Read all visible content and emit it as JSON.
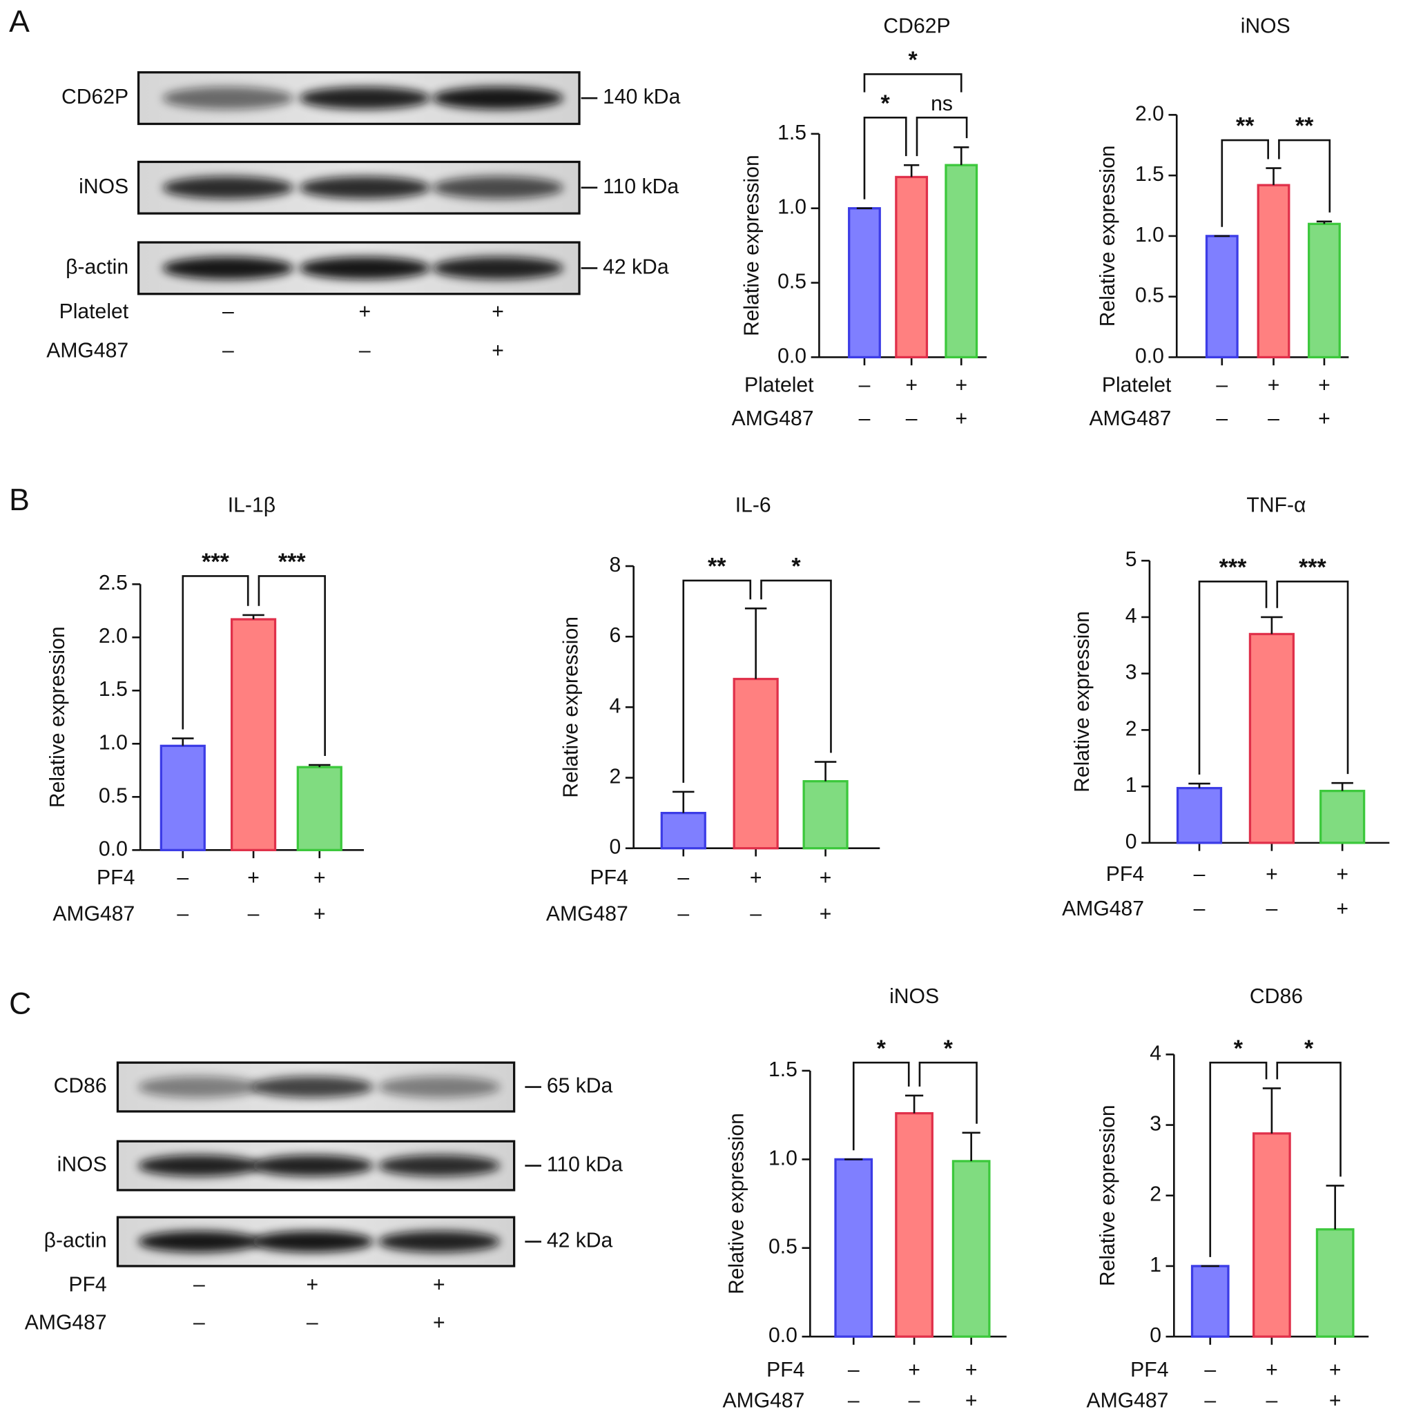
{
  "panels": [
    "A",
    "B",
    "C"
  ],
  "blots": [
    {
      "rows": [
        {
          "label": "CD62P",
          "marker": "140 kDa"
        },
        {
          "label": "iNOS",
          "marker": "110 kDa"
        },
        {
          "label": "β-actin",
          "marker": "42 kDa"
        }
      ],
      "conditions": [
        {
          "name": "Platelet",
          "signs": [
            "–",
            "+",
            "+"
          ]
        },
        {
          "name": "AMG487",
          "signs": [
            "–",
            "–",
            "+"
          ]
        }
      ]
    },
    {
      "rows": [
        {
          "label": "CD86",
          "marker": "65 kDa"
        },
        {
          "label": "iNOS",
          "marker": "110 kDa"
        },
        {
          "label": "β-actin",
          "marker": "42 kDa"
        }
      ],
      "conditions": [
        {
          "name": "PF4",
          "signs": [
            "–",
            "+",
            "+"
          ]
        },
        {
          "name": "AMG487",
          "signs": [
            "–",
            "–",
            "+"
          ]
        }
      ]
    }
  ],
  "chart_data": [
    {
      "type": "bar",
      "title": "CD62P",
      "ylabel": "Relative expression",
      "conditions": [
        {
          "name": "Platelet",
          "signs": [
            "–",
            "+",
            "+"
          ]
        },
        {
          "name": "AMG487",
          "signs": [
            "–",
            "–",
            "+"
          ]
        }
      ],
      "values": [
        1.0,
        1.21,
        1.29
      ],
      "errors": [
        0,
        0.08,
        0.12
      ],
      "colors": [
        "#7f7fff",
        "#ff8080",
        "#80dc80"
      ],
      "edge_colors": [
        "#3c3ce6",
        "#e0304a",
        "#3cc83c"
      ],
      "ylim": [
        0,
        1.5
      ],
      "yticks": [
        {
          "value": 0,
          "label": "0.0"
        },
        {
          "value": 0.5,
          "label": "0.5"
        },
        {
          "value": 1,
          "label": "1.0"
        },
        {
          "value": 1.5,
          "label": "1.5"
        }
      ],
      "significance": [
        "*",
        "ns",
        "*"
      ]
    },
    {
      "type": "bar",
      "title": "iNOS",
      "ylabel": "Relative expression",
      "conditions": [
        {
          "name": "Platelet",
          "signs": [
            "–",
            "+",
            "+"
          ]
        },
        {
          "name": "AMG487",
          "signs": [
            "–",
            "–",
            "+"
          ]
        }
      ],
      "values": [
        1.0,
        1.42,
        1.1
      ],
      "errors": [
        0,
        0.14,
        0.02
      ],
      "colors": [
        "#7f7fff",
        "#ff8080",
        "#80dc80"
      ],
      "edge_colors": [
        "#3c3ce6",
        "#e0304a",
        "#3cc83c"
      ],
      "ylim": [
        0,
        2
      ],
      "yticks": [
        {
          "value": 0,
          "label": "0.0"
        },
        {
          "value": 0.5,
          "label": "0.5"
        },
        {
          "value": 1,
          "label": "1.0"
        },
        {
          "value": 1.5,
          "label": "1.5"
        },
        {
          "value": 2,
          "label": "2.0"
        }
      ],
      "significance": [
        "**",
        "**"
      ]
    },
    {
      "type": "bar",
      "title": "IL-1β",
      "ylabel": "Relative expression",
      "conditions": [
        {
          "name": "PF4",
          "signs": [
            "–",
            "+",
            "+"
          ]
        },
        {
          "name": "AMG487",
          "signs": [
            "–",
            "–",
            "+"
          ]
        }
      ],
      "values": [
        0.98,
        2.17,
        0.78
      ],
      "errors": [
        0.07,
        0.04,
        0.02
      ],
      "colors": [
        "#7f7fff",
        "#ff8080",
        "#80dc80"
      ],
      "edge_colors": [
        "#3c3ce6",
        "#e0304a",
        "#3cc83c"
      ],
      "ylim": [
        0,
        2.5
      ],
      "yticks": [
        {
          "value": 0,
          "label": "0.0"
        },
        {
          "value": 0.5,
          "label": "0.5"
        },
        {
          "value": 1,
          "label": "1.0"
        },
        {
          "value": 1.5,
          "label": "1.5"
        },
        {
          "value": 2,
          "label": "2.0"
        },
        {
          "value": 2.5,
          "label": "2.5"
        }
      ],
      "significance": [
        "***",
        "***"
      ]
    },
    {
      "type": "bar",
      "title": "IL-6",
      "ylabel": "Relative expression",
      "conditions": [
        {
          "name": "PF4",
          "signs": [
            "–",
            "+",
            "+"
          ]
        },
        {
          "name": "AMG487",
          "signs": [
            "–",
            "–",
            "+"
          ]
        }
      ],
      "values": [
        1.0,
        4.8,
        1.9
      ],
      "errors": [
        0.6,
        2.0,
        0.55
      ],
      "colors": [
        "#7f7fff",
        "#ff8080",
        "#80dc80"
      ],
      "edge_colors": [
        "#3c3ce6",
        "#e0304a",
        "#3cc83c"
      ],
      "ylim": [
        0,
        8
      ],
      "yticks": [
        0,
        2,
        4,
        6,
        8
      ],
      "significance": [
        "**",
        "*"
      ]
    },
    {
      "type": "bar",
      "title": "TNF-α",
      "ylabel": "Relative expression",
      "conditions": [
        {
          "name": "PF4",
          "signs": [
            "–",
            "+",
            "+"
          ]
        },
        {
          "name": "AMG487",
          "signs": [
            "–",
            "–",
            "+"
          ]
        }
      ],
      "values": [
        0.97,
        3.7,
        0.92
      ],
      "errors": [
        0.08,
        0.3,
        0.14
      ],
      "colors": [
        "#7f7fff",
        "#ff8080",
        "#80dc80"
      ],
      "edge_colors": [
        "#3c3ce6",
        "#e0304a",
        "#3cc83c"
      ],
      "ylim": [
        0,
        5
      ],
      "yticks": [
        0,
        1,
        2,
        3,
        4,
        5
      ],
      "significance": [
        "***",
        "***"
      ]
    },
    {
      "type": "bar",
      "title": "iNOS",
      "ylabel": "Relative expression",
      "conditions": [
        {
          "name": "PF4",
          "signs": [
            "–",
            "+",
            "+"
          ]
        },
        {
          "name": "AMG487",
          "signs": [
            "–",
            "–",
            "+"
          ]
        }
      ],
      "values": [
        1.0,
        1.26,
        0.99
      ],
      "errors": [
        0,
        0.1,
        0.16
      ],
      "colors": [
        "#7f7fff",
        "#ff8080",
        "#80dc80"
      ],
      "edge_colors": [
        "#3c3ce6",
        "#e0304a",
        "#3cc83c"
      ],
      "ylim": [
        0,
        1.5
      ],
      "yticks": [
        {
          "value": 0,
          "label": "0.0"
        },
        {
          "value": 0.5,
          "label": "0.5"
        },
        {
          "value": 1,
          "label": "1.0"
        },
        {
          "value": 1.5,
          "label": "1.5"
        }
      ],
      "significance": [
        "*",
        "*"
      ]
    },
    {
      "type": "bar",
      "title": "CD86",
      "ylabel": "Relative expression",
      "conditions": [
        {
          "name": "PF4",
          "signs": [
            "–",
            "+",
            "+"
          ]
        },
        {
          "name": "AMG487",
          "signs": [
            "–",
            "–",
            "+"
          ]
        }
      ],
      "values": [
        1.0,
        2.88,
        1.52
      ],
      "errors": [
        0,
        0.64,
        0.62
      ],
      "colors": [
        "#7f7fff",
        "#ff8080",
        "#80dc80"
      ],
      "edge_colors": [
        "#3c3ce6",
        "#e0304a",
        "#3cc83c"
      ],
      "ylim": [
        0,
        4
      ],
      "yticks": [
        0,
        1,
        2,
        3,
        4
      ],
      "significance": [
        "*",
        "*"
      ]
    }
  ]
}
